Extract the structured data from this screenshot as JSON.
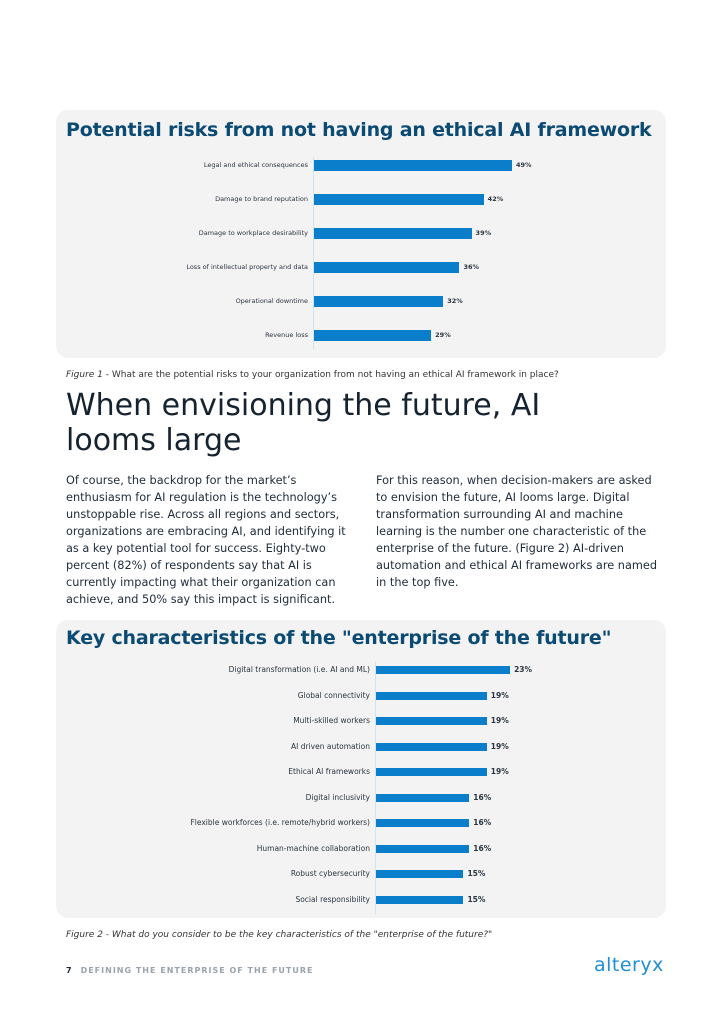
{
  "figure1": {
    "title": "Potential risks from not having an ethical AI framework",
    "caption_label": "Figure 1",
    "caption_text": " - What are the potential risks to your organization from not having an ethical AI framework in place?",
    "chart_data": {
      "type": "bar",
      "orientation": "horizontal",
      "title": "Potential risks from not having an ethical AI framework",
      "categories": [
        "Legal and ethical consequences",
        "Damage to brand reputation",
        "Damage to workplace desirability",
        "Loss of intellectual property and data",
        "Operational downtime",
        "Revenue loss"
      ],
      "values": [
        49,
        42,
        39,
        36,
        32,
        29
      ],
      "value_labels": [
        "49%",
        "42%",
        "39%",
        "36%",
        "32%",
        "29%"
      ],
      "unit": "%",
      "color": "#0a7ecb"
    }
  },
  "article": {
    "heading": "When envisioning the future, AI looms large",
    "col1": "Of course, the backdrop for the market’s enthusiasm for AI regulation is the technology’s unstoppable rise. Across all regions and sectors, organizations are embracing AI, and identifying it as a key potential tool for success. Eighty-two percent (82%) of respondents say that AI is currently impacting what their organization can achieve, and 50% say this impact is significant.",
    "col2": "For this reason, when decision-makers are asked to envision the future, AI looms large. Digital transformation surrounding AI and machine learning is the number one characteristic of the enterprise of the future. (Figure 2) AI-driven automation and ethical AI frameworks are named in the top five."
  },
  "figure2": {
    "title": "Key characteristics of the \"enterprise of the future\"",
    "caption": "Figure 2 - What do you consider to be the key characteristics of the \"enterprise of the future?\"",
    "chart_data": {
      "type": "bar",
      "orientation": "horizontal",
      "title": "Key characteristics of the \"enterprise of the future\"",
      "categories": [
        "Digital transformation (i.e. AI and ML)",
        "Global connectivity",
        "Multi-skilled workers",
        "AI driven automation",
        "Ethical AI frameworks",
        "Digital inclusivity",
        "Flexible workforces (i.e. remote/hybrid workers)",
        "Human-machine collaboration",
        "Robust cybersecurity",
        "Social responsibility"
      ],
      "values": [
        23,
        19,
        19,
        19,
        19,
        16,
        16,
        16,
        15,
        15
      ],
      "value_labels": [
        "23%",
        "19%",
        "19%",
        "19%",
        "19%",
        "16%",
        "16%",
        "16%",
        "15%",
        "15%"
      ],
      "unit": "%",
      "color": "#0a7ecb"
    }
  },
  "footer": {
    "page_number": "7",
    "section": "DEFINING THE ENTERPRISE OF THE FUTURE",
    "logo": "alteryx"
  }
}
